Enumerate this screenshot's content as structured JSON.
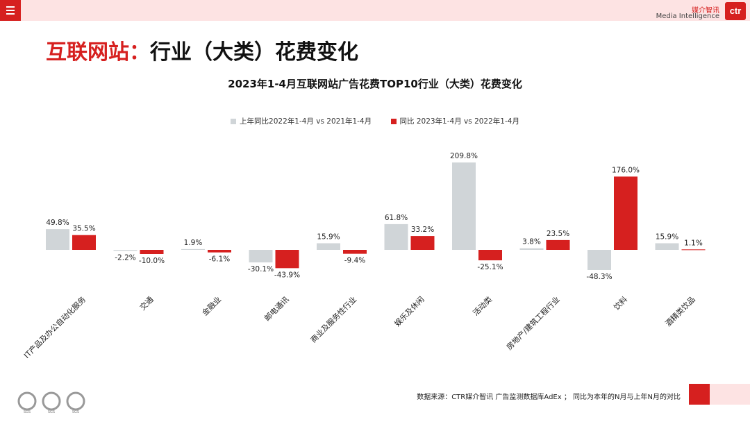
{
  "header": {
    "menu_icon": "hamburger-menu-icon",
    "logo_cn": "媒介智讯",
    "logo_en": "Media Intelligence",
    "logo_mark": "ctr"
  },
  "page_title": {
    "prefix": "互联网站：",
    "main": "行业（大类）花费变化"
  },
  "colors": {
    "accent": "#d6201f",
    "series_prev": "#d0d5d8",
    "series_curr": "#d6201f",
    "top_bar": "#fde3e3"
  },
  "chart_data": {
    "type": "bar",
    "title": "2023年1-4月互联网站广告花费TOP10行业（大类）花费变化",
    "categories": [
      "IT产品及办公自动化服务",
      "交通",
      "金融业",
      "邮电通讯",
      "商业及服务性行业",
      "娱乐及休闲",
      "活动类",
      "房地产/建筑工程行业",
      "饮料",
      "酒精类饮品"
    ],
    "series": [
      {
        "name": "上年同比2022年1-4月  vs  2021年1-4月",
        "values": [
          49.8,
          -2.2,
          1.9,
          -30.1,
          15.9,
          61.8,
          209.8,
          3.8,
          -48.3,
          15.9
        ],
        "color": "#d0d5d8"
      },
      {
        "name": "同比 2023年1-4月  vs  2022年1-4月",
        "values": [
          35.5,
          -10.0,
          -6.1,
          -43.9,
          -9.4,
          33.2,
          -25.1,
          23.5,
          176.0,
          1.1
        ],
        "color": "#d6201f"
      }
    ],
    "value_suffix": "%",
    "legend_position": "top-center",
    "grid": false
  },
  "footer": {
    "source": "数据来源：CTR媒介智讯 广告监测数据库AdEx ；  同比为本年的N月与上年N月的对比",
    "cert_labels": [
      "SGS",
      "SGS",
      "SGS"
    ]
  }
}
